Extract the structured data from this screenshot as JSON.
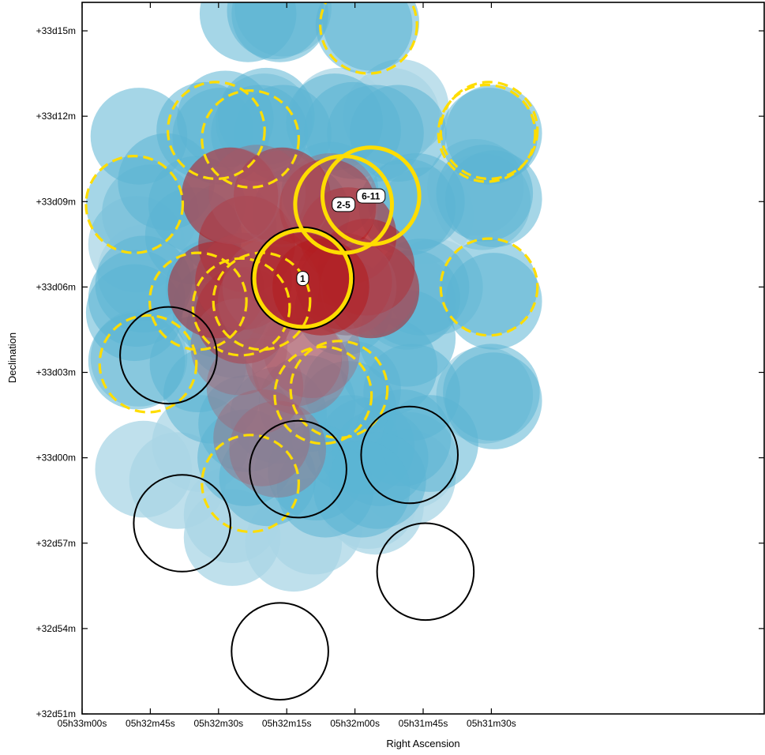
{
  "chart_data": {
    "type": "scatter",
    "xlabel": "Right Ascension",
    "ylabel": "Declination",
    "x_unit": "RA seconds of time east of 05h30m00s",
    "y_unit": "Dec arcminutes above +32d51m",
    "xlim": [
      180,
      30
    ],
    "ylim": [
      0,
      25
    ],
    "x_ticks": [
      {
        "value": 180,
        "label": "05h33m00s"
      },
      {
        "value": 165,
        "label": "05h32m45s"
      },
      {
        "value": 150,
        "label": "05h32m30s"
      },
      {
        "value": 135,
        "label": "05h32m15s"
      },
      {
        "value": 120,
        "label": "05h32m00s"
      },
      {
        "value": 105,
        "label": "05h31m45s"
      },
      {
        "value": 90,
        "label": "05h31m30s"
      }
    ],
    "y_ticks": [
      {
        "value": 0,
        "label": "+32d51m"
      },
      {
        "value": 3,
        "label": "+32d54m"
      },
      {
        "value": 6,
        "label": "+32d57m"
      },
      {
        "value": 9,
        "label": "+33d00m"
      },
      {
        "value": 12,
        "label": "+33d03m"
      },
      {
        "value": 15,
        "label": "+33d06m"
      },
      {
        "value": 18,
        "label": "+33d09m"
      },
      {
        "value": 21,
        "label": "+33d12m"
      },
      {
        "value": 24,
        "label": "+33d15m"
      }
    ],
    "grid": false,
    "legend": "none",
    "radius_arcmin": 1.7,
    "colors": {
      "field": "#5bb5d3",
      "field_light": "#a9d6e6",
      "highlight": "#b21e22",
      "highlight_dim": "#a85a66",
      "ring_yellow": "#ffdd00",
      "ring_black": "#000000"
    },
    "fields_light": [
      [
        166.5,
        8.6
      ],
      [
        159,
        8.2
      ],
      [
        147,
        7.0
      ],
      [
        147,
        6.2
      ],
      [
        133.5,
        6.0
      ],
      [
        131.5,
        8.5
      ],
      [
        129,
        6.6
      ],
      [
        117,
        7.5
      ],
      [
        115.5,
        7.3
      ],
      [
        108.5,
        8.3
      ],
      [
        108,
        8.9
      ],
      [
        168,
        16.5
      ],
      [
        165,
        17.6
      ],
      [
        112,
        21.0
      ],
      [
        110,
        21.3
      ],
      [
        91.5,
        11.2
      ],
      [
        93.5,
        18.5
      ],
      [
        92,
        18.0
      ],
      [
        147.8,
        17.0
      ],
      [
        135.8,
        24.8
      ],
      [
        123.5,
        21.0
      ],
      [
        167.5,
        12.5
      ],
      [
        166,
        15.5
      ],
      [
        154,
        9.5
      ],
      [
        140,
        20.8
      ],
      [
        104.5,
        17.5
      ],
      [
        102.5,
        15.0
      ],
      [
        108.5,
        14.5
      ]
    ],
    "fields": [
      [
        143.5,
        24.6
      ],
      [
        137.5,
        24.7
      ],
      [
        136.5,
        24.6
      ],
      [
        116.5,
        24.3
      ],
      [
        118,
        24.2
      ],
      [
        167.5,
        20.3
      ],
      [
        153,
        20.5
      ],
      [
        149.5,
        20.3
      ],
      [
        148.5,
        20.9
      ],
      [
        141,
        20.4
      ],
      [
        135.8,
        20.4
      ],
      [
        139.5,
        21.0
      ],
      [
        124.5,
        20.8
      ],
      [
        120.5,
        20.5
      ],
      [
        115.5,
        20.4
      ],
      [
        110.5,
        20.4
      ],
      [
        89.5,
        20.4
      ],
      [
        90.5,
        20.3
      ],
      [
        161.5,
        18.7
      ],
      [
        154.8,
        17.9
      ],
      [
        155.5,
        16.8
      ],
      [
        168.5,
        17.9
      ],
      [
        108.5,
        17.8
      ],
      [
        106.5,
        18.0
      ],
      [
        89.5,
        18.1
      ],
      [
        91.5,
        18.3
      ],
      [
        168.5,
        14.1
      ],
      [
        168,
        14.6
      ],
      [
        151,
        15.0
      ],
      [
        149.5,
        14.2
      ],
      [
        122.5,
        14.3
      ],
      [
        122,
        15.0
      ],
      [
        107.5,
        14.6
      ],
      [
        105.5,
        15.0
      ],
      [
        108.5,
        13.2
      ],
      [
        89.5,
        14.5
      ],
      [
        90.5,
        15.0
      ],
      [
        154.5,
        12.3
      ],
      [
        151.5,
        11.2
      ],
      [
        143.8,
        10.2
      ],
      [
        136.8,
        10.5
      ],
      [
        130.5,
        10.9
      ],
      [
        121.5,
        10.7
      ],
      [
        120.5,
        11.4
      ],
      [
        121,
        9.5
      ],
      [
        117.5,
        9.4
      ],
      [
        114.5,
        9.0
      ],
      [
        107.5,
        11.3
      ],
      [
        109.5,
        9.7
      ],
      [
        103.5,
        9.5
      ],
      [
        90,
        11.3
      ],
      [
        89.5,
        11.0
      ],
      [
        168,
        12.4
      ],
      [
        144,
        9.0
      ],
      [
        139.2,
        8.3
      ],
      [
        128.5,
        8.5
      ],
      [
        126.5,
        7.9
      ],
      [
        115,
        8.2
      ],
      [
        118.5,
        7.9
      ],
      [
        166.5,
        15.1
      ],
      [
        125.5,
        18.4
      ],
      [
        131.8,
        17.6
      ],
      [
        146.5,
        13.5
      ],
      [
        112.5,
        12.2
      ]
    ],
    "fields_red": [
      [
        147.5,
        18.2
      ],
      [
        136,
        18.2
      ],
      [
        126,
        17.8
      ],
      [
        121.5,
        16.8
      ],
      [
        122.5,
        15.2
      ],
      [
        116.5,
        14.9
      ],
      [
        117.5,
        15.7
      ],
      [
        131.5,
        15.2
      ],
      [
        144.5,
        14.0
      ],
      [
        150.5,
        14.9
      ],
      [
        144.5,
        15.2
      ],
      [
        143.8,
        16.5
      ]
    ],
    "fields_red_dim": [
      [
        147,
        18.2
      ],
      [
        141.5,
        18.3
      ],
      [
        136,
        18.1
      ],
      [
        125.5,
        18.0
      ],
      [
        117,
        15.0
      ],
      [
        121.5,
        15.0
      ],
      [
        144.5,
        15.2
      ],
      [
        139.5,
        14.5
      ],
      [
        138.5,
        15.0
      ],
      [
        132,
        12.2
      ],
      [
        140.5,
        9.7
      ],
      [
        137,
        9.3
      ],
      [
        142,
        11.5
      ],
      [
        133.5,
        12.5
      ],
      [
        129.5,
        12.8
      ],
      [
        145.5,
        12.9
      ]
    ],
    "fields_red_bright": [
      [
        131.5,
        15.2
      ],
      [
        127.5,
        15.0
      ]
    ],
    "yellow_dashed": [
      [
        117,
        24.2
      ],
      [
        150.5,
        20.5
      ],
      [
        143,
        20.2
      ],
      [
        168.5,
        17.9
      ],
      [
        91,
        20.4
      ],
      [
        90.5,
        15.0
      ],
      [
        154.5,
        14.5
      ],
      [
        165.5,
        12.3
      ],
      [
        140.5,
        14.5
      ],
      [
        145,
        14.3
      ],
      [
        123.5,
        11.4
      ],
      [
        127,
        11.2
      ],
      [
        143,
        8.1
      ],
      [
        90.5,
        20.5
      ]
    ],
    "yellow_solid": [
      {
        "ra": 131.5,
        "dec": 15.3,
        "label": "1"
      },
      {
        "ra": 122.5,
        "dec": 17.9,
        "label": "2-5"
      },
      {
        "ra": 116.5,
        "dec": 18.2,
        "label": "6-11"
      }
    ],
    "black_rings": [
      [
        161,
        12.6
      ],
      [
        158,
        6.7
      ],
      [
        132.5,
        8.6
      ],
      [
        108,
        9.1
      ],
      [
        104.5,
        5.0
      ],
      [
        136.5,
        2.2
      ]
    ]
  }
}
